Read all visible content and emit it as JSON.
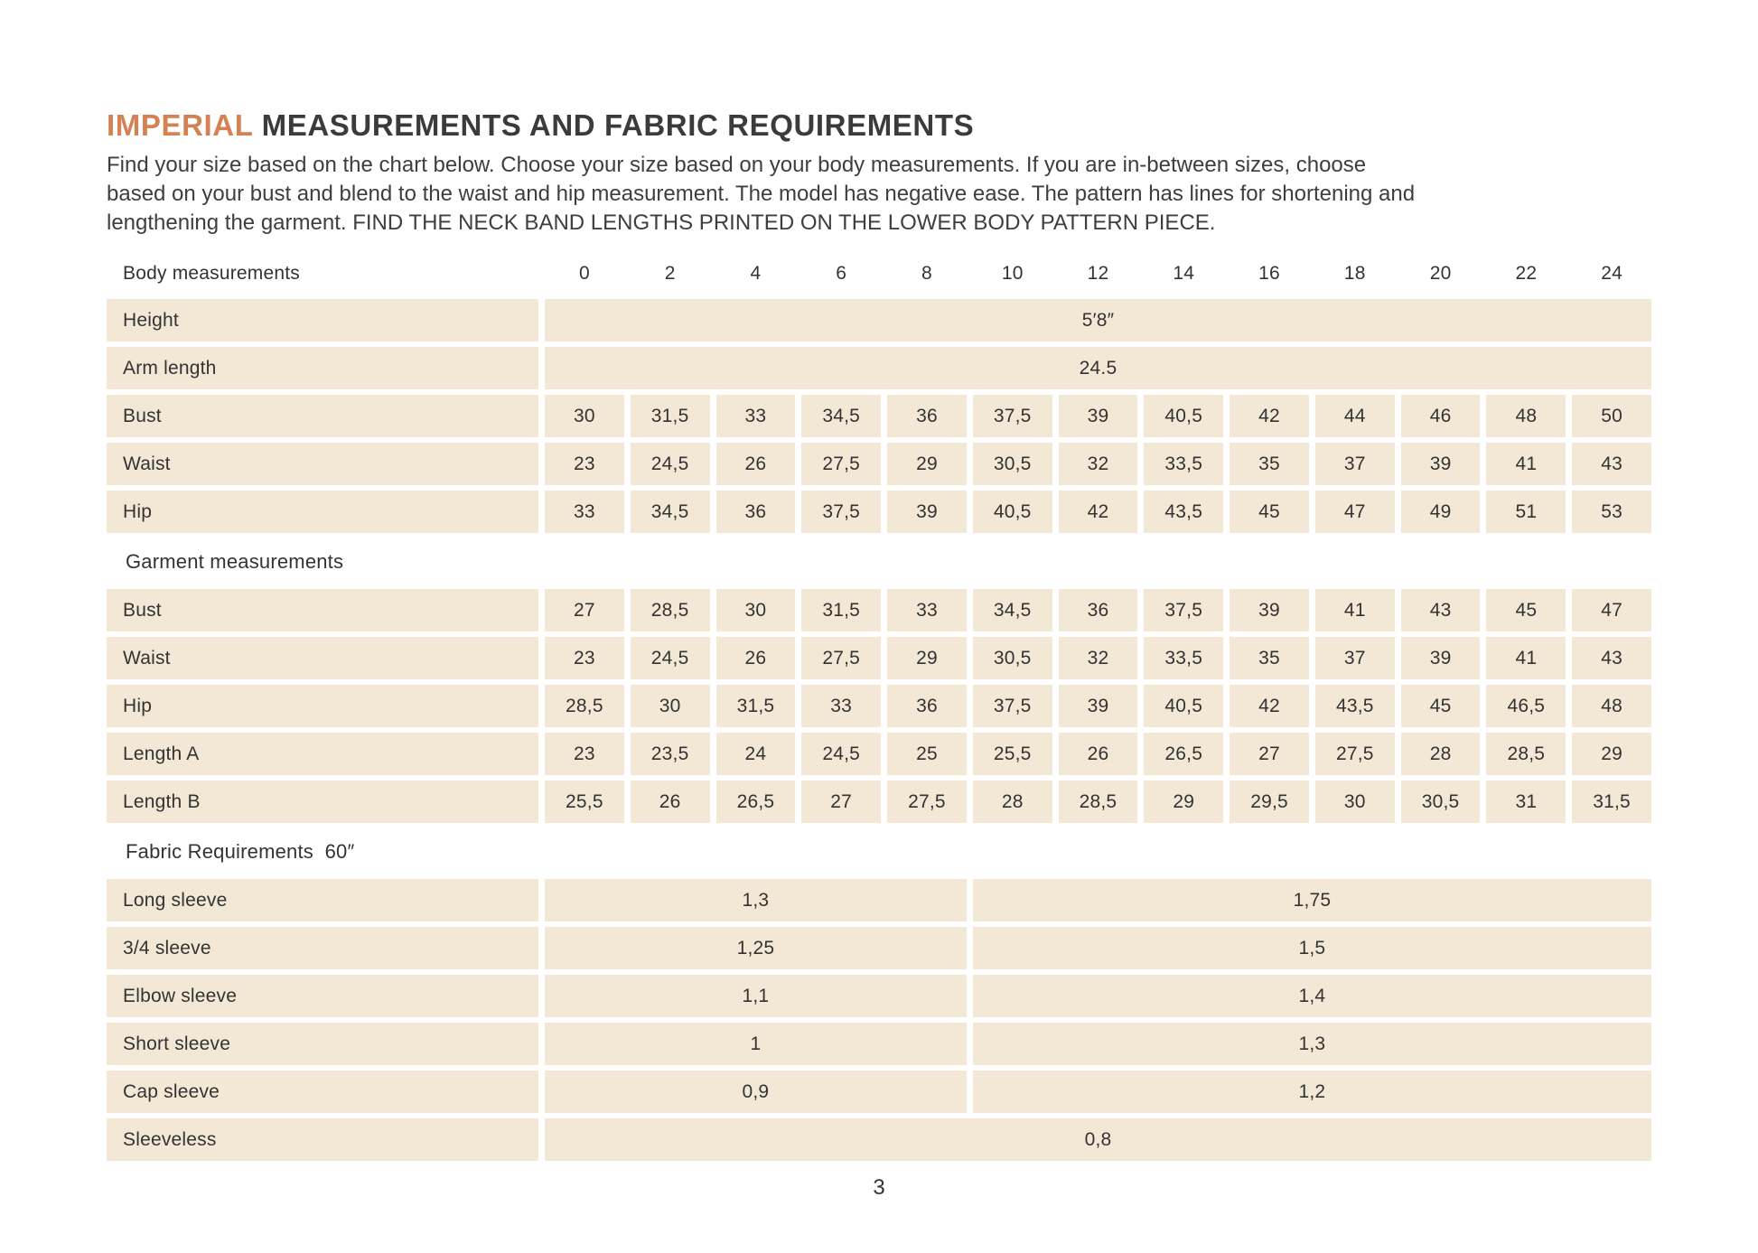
{
  "colors": {
    "accent": "#d48155",
    "row-bg": "#f3e8d5",
    "text": "#3a3a3a",
    "title": "#3b3b3b"
  },
  "header": {
    "title_accent": "IMPERIAL",
    "title_rest": " MEASUREMENTS AND FABRIC REQUIREMENTS",
    "intro_lines": [
      "Find your size based on the chart below. Choose your size based on your body measurements. If you are in-between sizes, choose",
      "based on your bust and blend to the waist and hip measurement. The model has negative ease. The pattern has lines for shortening and",
      "lengthening the garment. FIND THE NECK BAND LENGTHS PRINTED ON THE LOWER BODY PATTERN PIECE."
    ]
  },
  "size_chart": {
    "corner_label": "Body measurements",
    "size_headers": [
      "0",
      "2",
      "4",
      "6",
      "8",
      "10",
      "12",
      "14",
      "16",
      "18",
      "20",
      "22",
      "24"
    ],
    "body_rows": [
      {
        "label": "Height",
        "span": "5′8″"
      },
      {
        "label": "Arm length",
        "span": "24.5"
      },
      {
        "label": "Bust",
        "cells": [
          "30",
          "31,5",
          "33",
          "34,5",
          "36",
          "37,5",
          "39",
          "40,5",
          "42",
          "44",
          "46",
          "48",
          "50"
        ]
      },
      {
        "label": "Waist",
        "cells": [
          "23",
          "24,5",
          "26",
          "27,5",
          "29",
          "30,5",
          "32",
          "33,5",
          "35",
          "37",
          "39",
          "41",
          "43"
        ]
      },
      {
        "label": "Hip",
        "cells": [
          "33",
          "34,5",
          "36",
          "37,5",
          "39",
          "40,5",
          "42",
          "43,5",
          "45",
          "47",
          "49",
          "51",
          "53"
        ]
      }
    ],
    "garment_title": "Garment measurements",
    "garment_rows": [
      {
        "label": "Bust",
        "cells": [
          "27",
          "28,5",
          "30",
          "31,5",
          "33",
          "34,5",
          "36",
          "37,5",
          "39",
          "41",
          "43",
          "45",
          "47"
        ]
      },
      {
        "label": "Waist",
        "cells": [
          "23",
          "24,5",
          "26",
          "27,5",
          "29",
          "30,5",
          "32",
          "33,5",
          "35",
          "37",
          "39",
          "41",
          "43"
        ]
      },
      {
        "label": "Hip",
        "cells": [
          "28,5",
          "30",
          "31,5",
          "33",
          "36",
          "37,5",
          "39",
          "40,5",
          "42",
          "43,5",
          "45",
          "46,5",
          "48"
        ]
      },
      {
        "label": "Length A",
        "cells": [
          "23",
          "23,5",
          "24",
          "24,5",
          "25",
          "25,5",
          "26",
          "26,5",
          "27",
          "27,5",
          "28",
          "28,5",
          "29"
        ]
      },
      {
        "label": "Length B",
        "cells": [
          "25,5",
          "26",
          "26,5",
          "27",
          "27,5",
          "28",
          "28,5",
          "29",
          "29,5",
          "30",
          "30,5",
          "31",
          "31,5"
        ]
      }
    ],
    "fabric_title": "Fabric Requirements  60″",
    "fabric_rows": [
      {
        "label": "Long sleeve",
        "split": [
          "1,3",
          "1,75"
        ]
      },
      {
        "label": "3/4 sleeve",
        "split": [
          "1,25",
          "1,5"
        ]
      },
      {
        "label": "Elbow sleeve",
        "split": [
          "1,1",
          "1,4"
        ]
      },
      {
        "label": "Short sleeve",
        "split": [
          "1",
          "1,3"
        ]
      },
      {
        "label": "Cap sleeve",
        "split": [
          "0,9",
          "1,2"
        ]
      },
      {
        "label": "Sleeveless",
        "span": "0,8"
      }
    ]
  },
  "footer": {
    "page_number": "3"
  }
}
